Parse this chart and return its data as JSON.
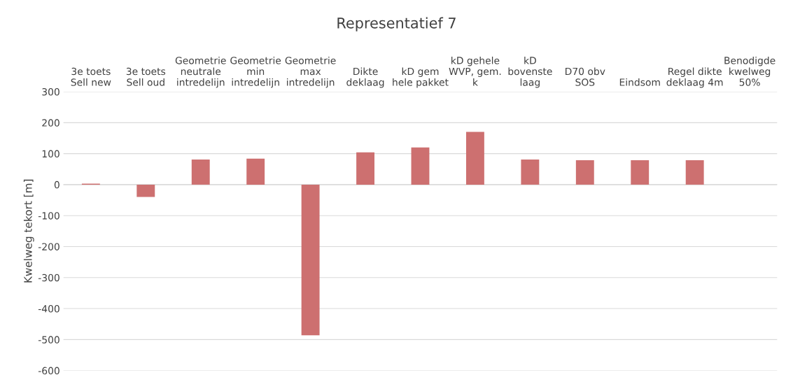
{
  "chart_data": {
    "type": "bar",
    "title": "Representatief 7",
    "ylabel": "Kwelweg tekort [m]",
    "categories": [
      "3e toets\nSell new",
      "3e toets\nSell oud",
      "Geometrie\nneutrale\nintredelijn",
      "Geometrie\nmin\nintredelijn",
      "Geometrie\nmax\nintredelijn",
      "Dikte\ndeklaag",
      "kD gem\nhele pakket",
      "kD gehele\nWVP, gem.\nk",
      "kD\nbovenste\nlaag",
      "D70 obv\nSOS",
      "Eindsom",
      "Regel dikte\ndeklaag 4m",
      "Benodigde\nkwelweg\n50%"
    ],
    "values": [
      3,
      -40,
      81,
      84,
      -486,
      104,
      120,
      170,
      81,
      79,
      79,
      79,
      null
    ],
    "color": "#cd7070",
    "ylim": [
      -600,
      300
    ],
    "yticks": [
      -600,
      -500,
      -400,
      -300,
      -200,
      -100,
      0,
      100,
      200,
      300
    ],
    "grid": "y",
    "legend": false
  }
}
